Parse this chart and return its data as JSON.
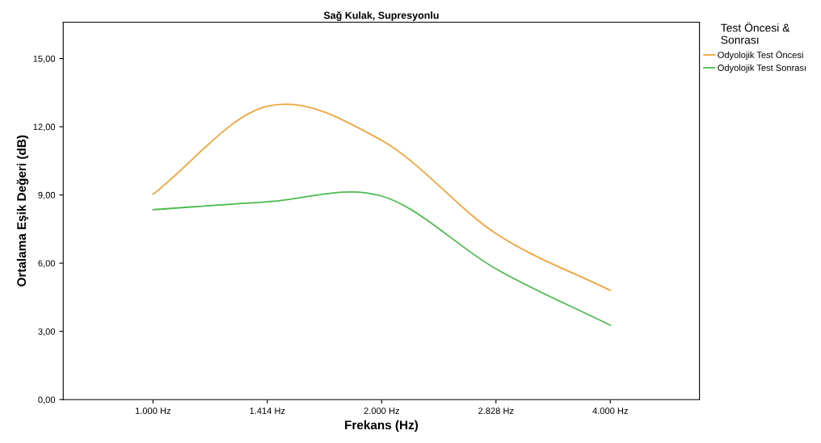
{
  "chart_data": {
    "type": "line",
    "title": "Sağ Kulak, Supresyonlu",
    "xlabel": "Frekans (Hz)",
    "ylabel": "Ortalama Eşik Değeri (dB)",
    "legend_title": "Test Öncesi &\nSonrası",
    "categories": [
      "1.000 Hz",
      "1.414 Hz",
      "2.000 Hz",
      "2.828 Hz",
      "4.000 Hz"
    ],
    "series": [
      {
        "name": "Odyolojik Test Öncesi",
        "color": "#f2a33a",
        "values": [
          9.03,
          12.9,
          11.4,
          7.3,
          4.8
        ]
      },
      {
        "name": "Odyolojik Test Sonrası",
        "color": "#4dbb4f",
        "values": [
          8.35,
          8.7,
          8.95,
          5.75,
          3.27
        ]
      }
    ],
    "ylim": [
      0,
      16.6
    ],
    "yticks": [
      {
        "value": 0,
        "label": "0,00"
      },
      {
        "value": 3,
        "label": "3,00"
      },
      {
        "value": 6,
        "label": "6,00"
      },
      {
        "value": 9,
        "label": "9,00"
      },
      {
        "value": 12,
        "label": "12,00"
      },
      {
        "value": 15,
        "label": "15,00"
      }
    ],
    "grid": false,
    "legend": "top right",
    "marker": "none",
    "line_style": "solid"
  }
}
